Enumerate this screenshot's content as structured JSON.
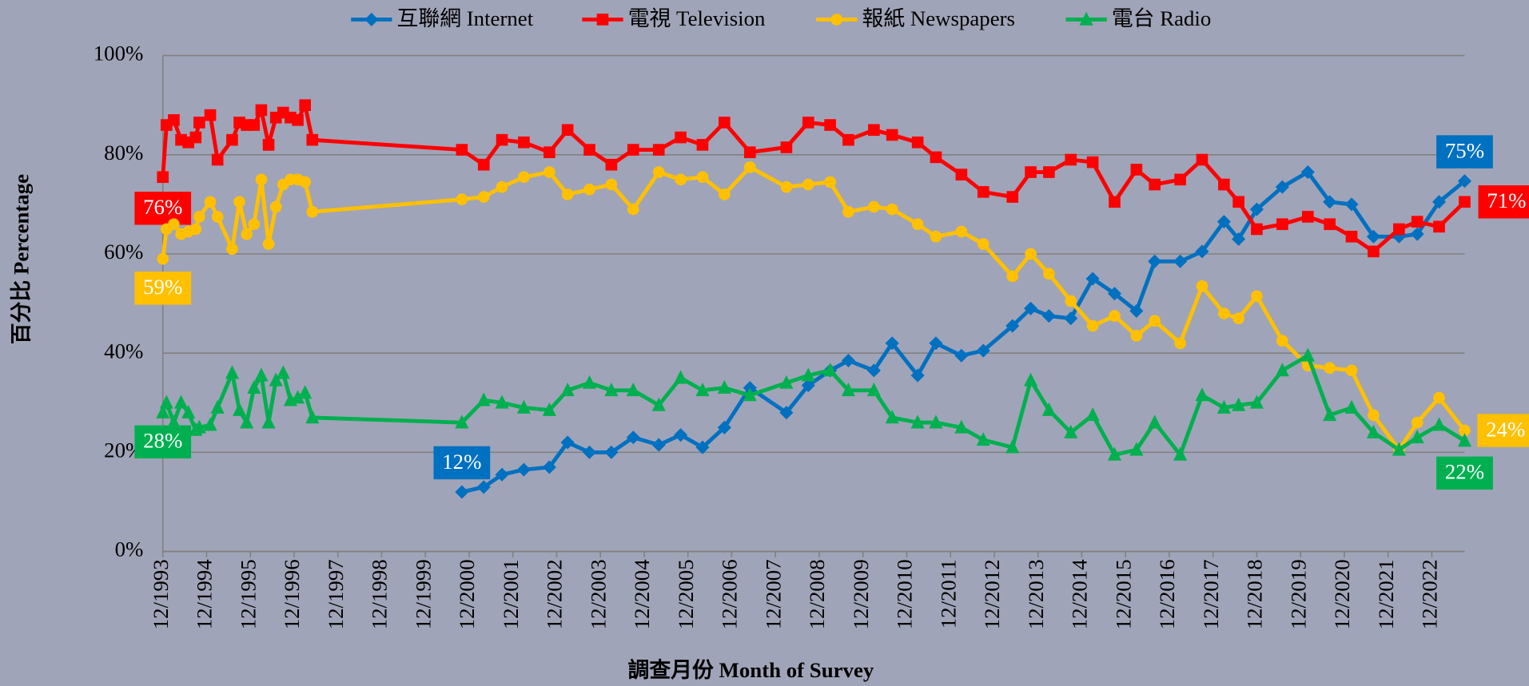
{
  "chart_data": {
    "type": "line",
    "y_label": "百分比 Percentage",
    "x_label": "調查月份 Month of Survey",
    "x": [
      "12/1993",
      "1/1994",
      "3/1994",
      "5/1994",
      "7/1994",
      "9/1994",
      "10/1994",
      "1/1995",
      "3/1995",
      "7/1995",
      "9/1995",
      "11/1995",
      "1/1996",
      "3/1996",
      "5/1996",
      "7/1996",
      "9/1996",
      "11/1996",
      "1/1997",
      "3/1997",
      "5/1997",
      "10/2000",
      "4/2001",
      "9/2001",
      "3/2002",
      "10/2002",
      "3/2003",
      "9/2003",
      "3/2004",
      "9/2004",
      "4/2005",
      "10/2005",
      "4/2006",
      "10/2006",
      "5/2007",
      "3/2008",
      "9/2008",
      "3/2009",
      "8/2009",
      "3/2010",
      "8/2010",
      "3/2011",
      "8/2011",
      "3/2012",
      "9/2012",
      "5/2013",
      "10/2013",
      "3/2014",
      "9/2014",
      "3/2015",
      "9/2015",
      "3/2016",
      "8/2016",
      "3/2017",
      "9/2017",
      "3/2018",
      "7/2018",
      "12/2018",
      "7/2019",
      "2/2020",
      "8/2020",
      "2/2021",
      "8/2021",
      "3/2022",
      "8/2022",
      "2/2023",
      "9/2023"
    ],
    "xlim": [
      "12/1993",
      "9/2023"
    ],
    "xticks": [
      "12/1993",
      "12/1994",
      "12/1995",
      "12/1996",
      "12/1997",
      "12/1998",
      "12/1999",
      "12/2000",
      "12/2001",
      "12/2002",
      "12/2003",
      "12/2004",
      "12/2005",
      "12/2006",
      "12/2007",
      "12/2008",
      "12/2009",
      "12/2010",
      "12/2011",
      "12/2012",
      "12/2013",
      "12/2014",
      "12/2015",
      "12/2016",
      "12/2017",
      "12/2018",
      "12/2019",
      "12/2020",
      "12/2021",
      "12/2022"
    ],
    "ylim": [
      0,
      100
    ],
    "yticks": [
      {
        "value": 0,
        "label": "0%"
      },
      {
        "value": 20,
        "label": "20%"
      },
      {
        "value": 40,
        "label": "40%"
      },
      {
        "value": 60,
        "label": "60%"
      },
      {
        "value": 80,
        "label": "80%"
      },
      {
        "value": 100,
        "label": "100%"
      }
    ],
    "grid": true,
    "legend": "top",
    "series": [
      {
        "name": "互聯網 Internet",
        "color": "#0070c0",
        "marker": "diamond",
        "values": [
          null,
          null,
          null,
          null,
          null,
          null,
          null,
          null,
          null,
          null,
          null,
          null,
          null,
          null,
          null,
          null,
          null,
          null,
          null,
          null,
          null,
          12,
          13,
          15.5,
          16.5,
          17,
          22,
          20,
          20,
          23,
          21.5,
          23.5,
          21,
          25,
          33,
          28,
          33.5,
          36.5,
          38.5,
          36.5,
          42,
          35.5,
          42,
          39.5,
          40.5,
          45.5,
          49,
          47.5,
          47,
          55,
          52,
          48.5,
          58.5,
          58.5,
          60.5,
          66.5,
          63,
          69,
          73.5,
          76.5,
          70.5,
          70,
          63.5,
          63.5,
          64,
          70.5,
          74.7
        ],
        "value_labels": {
          "21": "12%",
          "66": "75%"
        }
      },
      {
        "name": "電視 Television",
        "color": "#ff0000",
        "marker": "square",
        "values": [
          75.5,
          86,
          87,
          83,
          82.5,
          83.5,
          86.5,
          88,
          79,
          83,
          86.5,
          86,
          86,
          89,
          82,
          87.5,
          88.5,
          87.5,
          87,
          90,
          83,
          81,
          78,
          83,
          82.5,
          80.5,
          85,
          81,
          78,
          81,
          81,
          83.5,
          82,
          86.5,
          80.5,
          81.5,
          86.5,
          86,
          83,
          85,
          84,
          82.5,
          79.5,
          76,
          72.5,
          71.5,
          76.5,
          76.5,
          79,
          78.5,
          70.5,
          77,
          74,
          75,
          79,
          74,
          70.5,
          65,
          66,
          67.5,
          66,
          63.5,
          60.5,
          65,
          66.5,
          65.5,
          70.5
        ],
        "value_labels": {
          "0": "76%",
          "66": "71%"
        }
      },
      {
        "name": "報紙 Newspapers",
        "color": "#ffc000",
        "marker": "circle",
        "values": [
          59,
          65,
          66,
          64,
          64.5,
          65,
          67.5,
          70.5,
          67.5,
          61,
          70.5,
          64,
          66,
          75,
          62,
          69.5,
          74,
          75,
          75,
          74.5,
          68.5,
          71,
          71.5,
          73.5,
          75.5,
          76.5,
          72,
          73,
          74,
          69,
          76.5,
          75,
          75.5,
          72,
          77.5,
          73.5,
          74,
          74.5,
          68.5,
          69.5,
          69,
          66,
          63.5,
          64.5,
          62,
          55.5,
          60,
          56,
          50.5,
          45.5,
          47.5,
          43.5,
          46.5,
          42,
          53.5,
          48,
          47,
          51.5,
          42.5,
          37.5,
          37,
          36.5,
          27.5,
          20.5,
          26,
          31,
          24.4
        ],
        "value_labels": {
          "0": "59%",
          "66": "24%"
        }
      },
      {
        "name": "電台 Radio",
        "color": "#00b050",
        "marker": "triangle",
        "values": [
          28,
          30,
          26,
          30,
          28,
          24.5,
          25,
          25.5,
          29,
          36,
          28.5,
          26,
          33,
          35.5,
          26,
          34.5,
          36,
          30.5,
          31,
          32,
          27,
          26,
          30.5,
          30,
          29,
          28.5,
          32.5,
          34,
          32.5,
          32.5,
          29.5,
          35,
          32.5,
          33,
          31.5,
          34,
          35.5,
          36.5,
          32.5,
          32.5,
          27,
          26,
          26,
          25,
          22.5,
          21,
          34.5,
          28.5,
          24,
          27.5,
          19.5,
          20.5,
          26,
          19.5,
          31.5,
          29,
          29.5,
          30,
          36.5,
          39.5,
          27.5,
          29,
          24,
          20.5,
          23,
          25.5,
          22.3
        ],
        "value_labels": {
          "0": "28%",
          "66": "22%"
        }
      }
    ]
  }
}
